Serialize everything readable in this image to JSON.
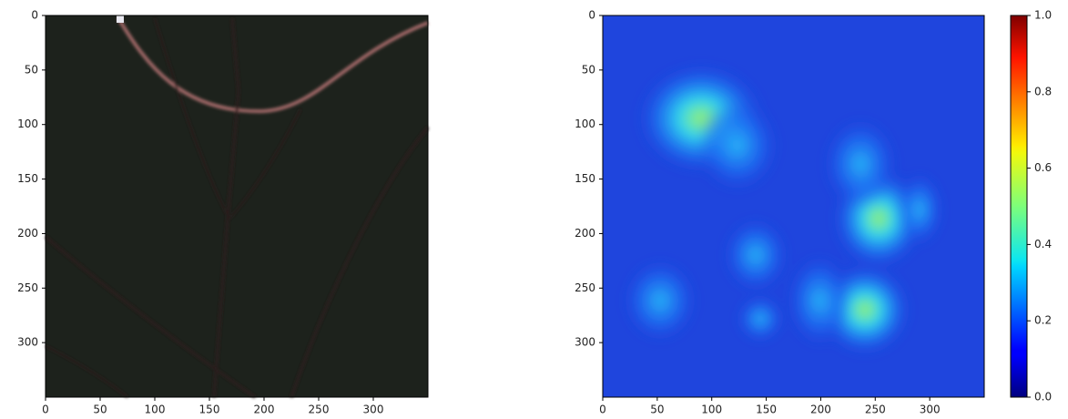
{
  "chart_data": [
    {
      "type": "image",
      "xlim": [
        0,
        350
      ],
      "ylim": [
        350,
        0
      ],
      "xticks": [
        0,
        50,
        100,
        150,
        200,
        250,
        300
      ],
      "yticks": [
        0,
        50,
        100,
        150,
        200,
        250,
        300
      ]
    },
    {
      "type": "heatmap",
      "xlim": [
        0,
        350
      ],
      "ylim": [
        350,
        0
      ],
      "xticks": [
        0,
        50,
        100,
        150,
        200,
        250,
        300
      ],
      "yticks": [
        0,
        50,
        100,
        150,
        200,
        250,
        300
      ],
      "colormap": "jet",
      "clim": [
        0,
        1
      ],
      "cticks": [
        {
          "value": 0,
          "label": "0.0"
        },
        0.2,
        0.4,
        0.6,
        0.8,
        {
          "value": 1,
          "label": "1.0"
        }
      ]
    }
  ]
}
